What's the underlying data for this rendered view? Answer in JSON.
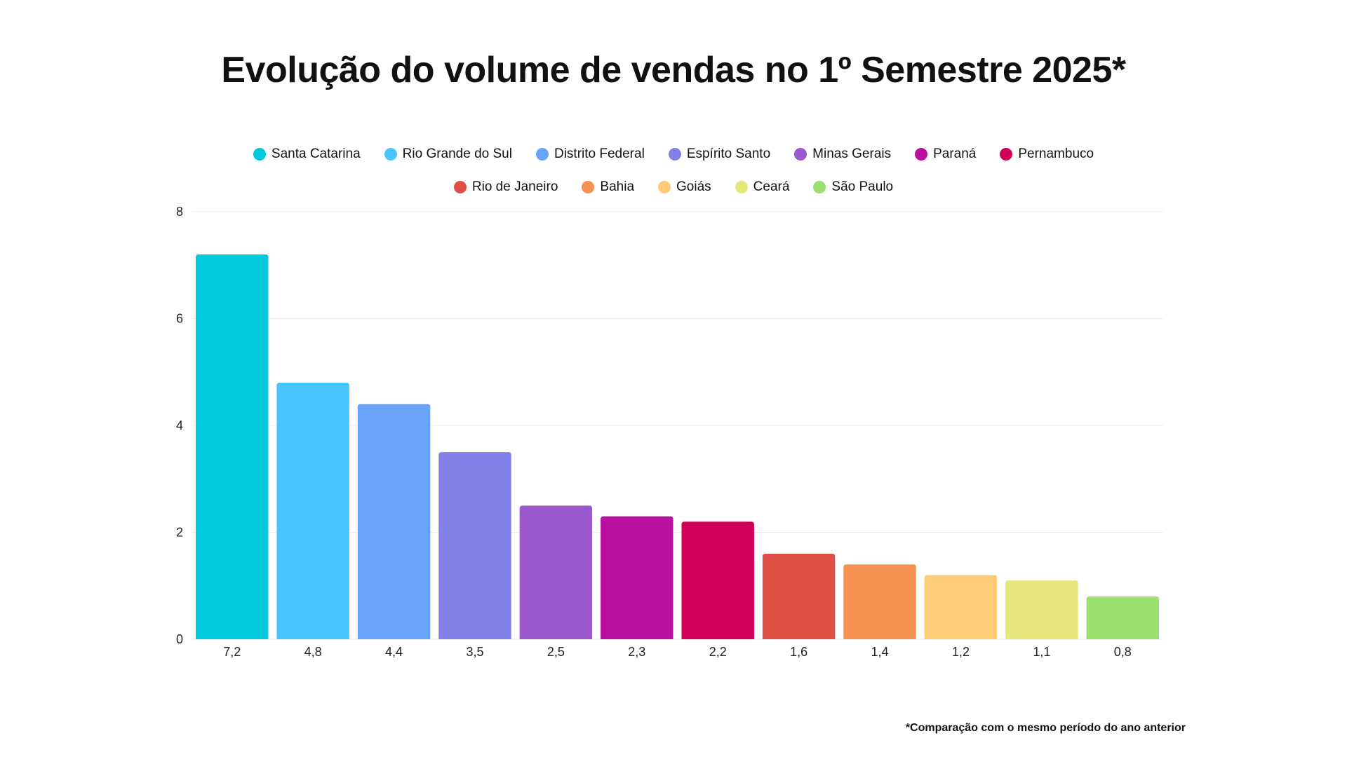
{
  "chart_data": {
    "type": "bar",
    "title": "Evolução do volume de vendas no 1º Semestre 2025*",
    "categories": [
      "Santa Catarina",
      "Rio Grande do Sul",
      "Distrito Federal",
      "Espírito Santo",
      "Minas Gerais",
      "Paraná",
      "Pernambuco",
      "Rio de Janeiro",
      "Bahia",
      "Goiás",
      "Ceará",
      "São Paulo"
    ],
    "values": [
      7.2,
      4.8,
      4.4,
      3.5,
      2.5,
      2.3,
      2.2,
      1.6,
      1.4,
      1.2,
      1.1,
      0.8
    ],
    "value_labels": [
      "7,2",
      "4,8",
      "4,4",
      "3,5",
      "2,5",
      "2,3",
      "2,2",
      "1,6",
      "1,4",
      "1,2",
      "1,1",
      "0,8"
    ],
    "colors": [
      "#00C9DC",
      "#48C4FF",
      "#67A3F8",
      "#8180E8",
      "#9B59CD",
      "#BA10A0",
      "#D10058",
      "#DE4F45",
      "#F79152",
      "#FECB77",
      "#E6E77A",
      "#9BDF6E"
    ],
    "ylim": [
      0,
      8
    ],
    "yticks": [
      "0",
      "2",
      "4",
      "6",
      "8"
    ],
    "xlabel": "",
    "ylabel": "",
    "grid": true,
    "legend_position": "top-center"
  },
  "footnote": "*Comparação com o mesmo período do ano anterior"
}
